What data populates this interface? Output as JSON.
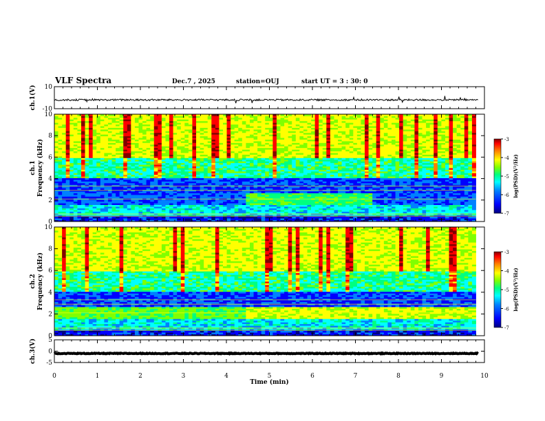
{
  "header": {
    "title": "VLF Spectra",
    "date": "Dec.7 , 2025",
    "station": "station=OUJ",
    "start": "start  UT =  3 : 30: 0"
  },
  "colors": {
    "colormap": [
      "#000080",
      "#0000ff",
      "#0080ff",
      "#00ffff",
      "#00ff80",
      "#80ff00",
      "#ffff00",
      "#ff8000",
      "#ff0000",
      "#800000"
    ]
  },
  "chart_data": [
    {
      "type": "line",
      "name": "ch1-waveform",
      "ylabel": "ch.1(V)",
      "ylim": [
        -10,
        10
      ],
      "yticks": [
        "10",
        "-10"
      ],
      "baseline": -2,
      "xlim": [
        0,
        10
      ]
    },
    {
      "type": "heatmap",
      "name": "ch1-spectrogram",
      "ylabel": "ch.1\nFrequency (kHz)",
      "ylim": [
        0,
        10
      ],
      "yticks": [
        "0",
        "2",
        "4",
        "6",
        "8",
        "10"
      ],
      "xlim": [
        0,
        9.8
      ],
      "colorbar": {
        "label": "log(PSD)(V²/Hz)",
        "range": [
          -7,
          -3
        ],
        "ticks": [
          "-3",
          "-4",
          "-5",
          "-6",
          "-7"
        ]
      }
    },
    {
      "type": "heatmap",
      "name": "ch2-spectrogram",
      "ylabel": "ch.2\nFrequency (kHz)",
      "ylim": [
        0,
        10
      ],
      "yticks": [
        "0",
        "2",
        "4",
        "6",
        "8",
        "10"
      ],
      "xlim": [
        0,
        9.8
      ],
      "colorbar": {
        "label": "log(PSD)(V²/Hz)",
        "range": [
          -7,
          -3
        ],
        "ticks": [
          "-3",
          "-4",
          "-5",
          "-6",
          "-7"
        ]
      }
    },
    {
      "type": "line",
      "name": "ch3-waveform",
      "ylabel": "ch.3(V)",
      "ylim": [
        -5,
        5
      ],
      "yticks": [
        "5",
        "0",
        "-5"
      ],
      "baseline": -1,
      "xlim": [
        0,
        10
      ]
    }
  ],
  "xaxis": {
    "label": "Time (min)",
    "range": [
      0,
      10
    ],
    "ticks": [
      "0",
      "1",
      "2",
      "3",
      "4",
      "5",
      "6",
      "7",
      "8",
      "9",
      "10"
    ]
  }
}
